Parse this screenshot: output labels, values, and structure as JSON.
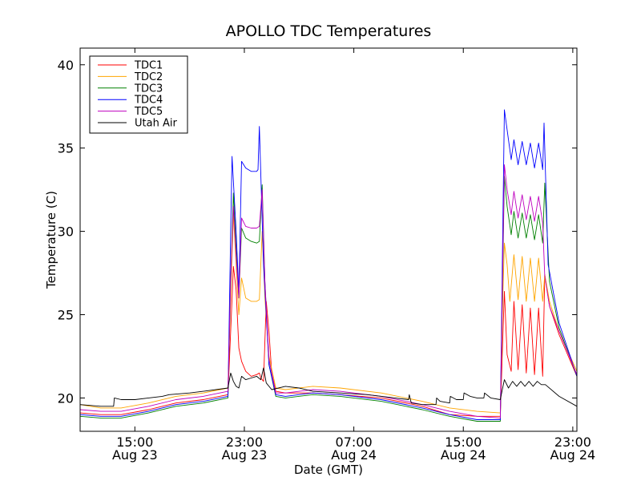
{
  "chart_data": {
    "type": "line",
    "title": "APOLLO TDC Temperatures",
    "xlabel": "Date (GMT)",
    "ylabel": "Temperature (C)",
    "xlim_hours": [
      11,
      47.3
    ],
    "ylim": [
      18,
      41
    ],
    "yticks": [
      20,
      25,
      30,
      35,
      40
    ],
    "xticks": [
      {
        "hour": 15,
        "line1": "15:00",
        "line2": "Aug 23"
      },
      {
        "hour": 23,
        "line1": "23:00",
        "line2": "Aug 23"
      },
      {
        "hour": 31,
        "line1": "07:00",
        "line2": "Aug 24"
      },
      {
        "hour": 39,
        "line1": "15:00",
        "line2": "Aug 24"
      },
      {
        "hour": 47,
        "line1": "23:00",
        "line2": "Aug 24"
      }
    ],
    "legend_position": "top-left",
    "series": [
      {
        "name": "TDC1",
        "color": "#ff0000",
        "points": [
          [
            11,
            19.1
          ],
          [
            12.5,
            19.0
          ],
          [
            14,
            19.0
          ],
          [
            16,
            19.3
          ],
          [
            18,
            19.7
          ],
          [
            20,
            19.9
          ],
          [
            21.8,
            20.2
          ],
          [
            22.0,
            24
          ],
          [
            22.2,
            27.9
          ],
          [
            22.4,
            26.5
          ],
          [
            22.6,
            23.0
          ],
          [
            22.8,
            22.2
          ],
          [
            23.1,
            21.6
          ],
          [
            23.5,
            21.3
          ],
          [
            23.9,
            21.4
          ],
          [
            24.1,
            21.5
          ],
          [
            24.2,
            21.2
          ],
          [
            24.4,
            21.0
          ],
          [
            24.6,
            25.8
          ],
          [
            24.8,
            24.0
          ],
          [
            25.0,
            21.5
          ],
          [
            25.3,
            20.4
          ],
          [
            26,
            20.3
          ],
          [
            28,
            20.3
          ],
          [
            30,
            20.2
          ],
          [
            33,
            20.0
          ],
          [
            36,
            19.5
          ],
          [
            38,
            19.0
          ],
          [
            40,
            18.9
          ],
          [
            41.7,
            18.9
          ],
          [
            41.85,
            22.7
          ],
          [
            42.0,
            26.4
          ],
          [
            42.2,
            22.6
          ],
          [
            42.5,
            21.6
          ],
          [
            42.7,
            25.8
          ],
          [
            43.0,
            21.7
          ],
          [
            43.3,
            25.6
          ],
          [
            43.6,
            21.5
          ],
          [
            43.9,
            25.4
          ],
          [
            44.2,
            21.4
          ],
          [
            44.5,
            25.4
          ],
          [
            44.8,
            21.3
          ],
          [
            44.95,
            27.4
          ],
          [
            45.3,
            25.5
          ],
          [
            46,
            23.8
          ],
          [
            47.3,
            21.3
          ]
        ]
      },
      {
        "name": "TDC2",
        "color": "#ffa500",
        "points": [
          [
            11,
            19.6
          ],
          [
            12.5,
            19.4
          ],
          [
            14,
            19.4
          ],
          [
            16,
            19.7
          ],
          [
            18,
            20.1
          ],
          [
            20,
            20.3
          ],
          [
            21.8,
            20.6
          ],
          [
            22.0,
            26
          ],
          [
            22.2,
            31.0
          ],
          [
            22.4,
            28.0
          ],
          [
            22.6,
            25.0
          ],
          [
            22.8,
            27.2
          ],
          [
            23.1,
            26.0
          ],
          [
            23.5,
            25.8
          ],
          [
            23.9,
            25.8
          ],
          [
            24.1,
            25.9
          ],
          [
            24.3,
            30.0
          ],
          [
            24.5,
            26.0
          ],
          [
            24.8,
            22.5
          ],
          [
            25.3,
            20.6
          ],
          [
            26,
            20.5
          ],
          [
            28,
            20.7
          ],
          [
            30,
            20.6
          ],
          [
            33,
            20.3
          ],
          [
            36,
            19.8
          ],
          [
            38,
            19.4
          ],
          [
            40,
            19.2
          ],
          [
            41.7,
            19.1
          ],
          [
            41.85,
            25.0
          ],
          [
            42.0,
            29.3
          ],
          [
            42.2,
            28.0
          ],
          [
            42.4,
            25.8
          ],
          [
            42.7,
            28.6
          ],
          [
            43.0,
            25.9
          ],
          [
            43.3,
            28.5
          ],
          [
            43.6,
            25.8
          ],
          [
            43.9,
            28.4
          ],
          [
            44.2,
            25.8
          ],
          [
            44.5,
            28.4
          ],
          [
            44.8,
            25.8
          ],
          [
            44.95,
            27.4
          ],
          [
            45.3,
            25.8
          ],
          [
            46,
            24.0
          ],
          [
            47.3,
            21.6
          ]
        ]
      },
      {
        "name": "TDC3",
        "color": "#008000",
        "points": [
          [
            11,
            18.9
          ],
          [
            12.5,
            18.8
          ],
          [
            14,
            18.8
          ],
          [
            16,
            19.1
          ],
          [
            18,
            19.5
          ],
          [
            20,
            19.7
          ],
          [
            21.8,
            20.0
          ],
          [
            22.0,
            27
          ],
          [
            22.2,
            32.3
          ],
          [
            22.4,
            29.0
          ],
          [
            22.6,
            26.0
          ],
          [
            22.8,
            30.2
          ],
          [
            23.1,
            29.6
          ],
          [
            23.5,
            29.4
          ],
          [
            23.9,
            29.3
          ],
          [
            24.1,
            29.4
          ],
          [
            24.3,
            32.8
          ],
          [
            24.5,
            27.0
          ],
          [
            24.8,
            22.0
          ],
          [
            25.3,
            20.1
          ],
          [
            26,
            20.0
          ],
          [
            28,
            20.2
          ],
          [
            30,
            20.1
          ],
          [
            33,
            19.8
          ],
          [
            36,
            19.3
          ],
          [
            38,
            18.9
          ],
          [
            40,
            18.6
          ],
          [
            41.7,
            18.6
          ],
          [
            41.85,
            26.0
          ],
          [
            42.0,
            33.3
          ],
          [
            42.2,
            31.5
          ],
          [
            42.5,
            29.8
          ],
          [
            42.7,
            31.2
          ],
          [
            43.0,
            29.6
          ],
          [
            43.3,
            31.1
          ],
          [
            43.6,
            29.6
          ],
          [
            43.9,
            31.0
          ],
          [
            44.2,
            29.5
          ],
          [
            44.5,
            31.0
          ],
          [
            44.8,
            29.3
          ],
          [
            44.95,
            32.9
          ],
          [
            45.3,
            27.0
          ],
          [
            46,
            24.2
          ],
          [
            47.3,
            21.3
          ]
        ]
      },
      {
        "name": "TDC4",
        "color": "#0000ff",
        "points": [
          [
            11,
            19.0
          ],
          [
            12.5,
            18.9
          ],
          [
            14,
            18.9
          ],
          [
            16,
            19.2
          ],
          [
            18,
            19.6
          ],
          [
            20,
            19.8
          ],
          [
            21.8,
            20.1
          ],
          [
            22.0,
            30
          ],
          [
            22.1,
            34.5
          ],
          [
            22.4,
            30.0
          ],
          [
            22.6,
            26.3
          ],
          [
            22.8,
            34.2
          ],
          [
            23.1,
            33.8
          ],
          [
            23.5,
            33.6
          ],
          [
            23.9,
            33.6
          ],
          [
            24.0,
            33.7
          ],
          [
            24.1,
            36.3
          ],
          [
            24.4,
            28.0
          ],
          [
            24.8,
            22.0
          ],
          [
            25.3,
            20.2
          ],
          [
            26,
            20.1
          ],
          [
            28,
            20.3
          ],
          [
            30,
            20.2
          ],
          [
            33,
            19.9
          ],
          [
            36,
            19.4
          ],
          [
            38,
            19.0
          ],
          [
            40,
            18.7
          ],
          [
            41.7,
            18.7
          ],
          [
            41.85,
            28.0
          ],
          [
            42.0,
            37.3
          ],
          [
            42.3,
            35.5
          ],
          [
            42.5,
            34.3
          ],
          [
            42.7,
            35.5
          ],
          [
            43.0,
            34.0
          ],
          [
            43.3,
            35.4
          ],
          [
            43.6,
            34.0
          ],
          [
            43.9,
            35.3
          ],
          [
            44.2,
            33.8
          ],
          [
            44.5,
            35.3
          ],
          [
            44.8,
            33.7
          ],
          [
            44.9,
            36.5
          ],
          [
            45.2,
            28.0
          ],
          [
            46,
            24.5
          ],
          [
            47.3,
            21.3
          ]
        ]
      },
      {
        "name": "TDC5",
        "color": "#bf00bf",
        "points": [
          [
            11,
            19.3
          ],
          [
            12.5,
            19.2
          ],
          [
            14,
            19.2
          ],
          [
            16,
            19.5
          ],
          [
            18,
            19.9
          ],
          [
            20,
            20.1
          ],
          [
            21.8,
            20.4
          ],
          [
            22.0,
            27
          ],
          [
            22.2,
            31.5
          ],
          [
            22.4,
            28.5
          ],
          [
            22.6,
            26.0
          ],
          [
            22.8,
            30.8
          ],
          [
            23.1,
            30.3
          ],
          [
            23.5,
            30.2
          ],
          [
            23.9,
            30.2
          ],
          [
            24.1,
            30.3
          ],
          [
            24.3,
            32.5
          ],
          [
            24.5,
            27.0
          ],
          [
            24.8,
            22.3
          ],
          [
            25.3,
            20.3
          ],
          [
            26,
            20.3
          ],
          [
            28,
            20.5
          ],
          [
            30,
            20.4
          ],
          [
            33,
            20.1
          ],
          [
            36,
            19.6
          ],
          [
            38,
            19.2
          ],
          [
            40,
            18.9
          ],
          [
            41.7,
            18.8
          ],
          [
            41.85,
            26.5
          ],
          [
            42.0,
            34.0
          ],
          [
            42.2,
            32.5
          ],
          [
            42.5,
            31.0
          ],
          [
            42.7,
            32.4
          ],
          [
            43.0,
            30.8
          ],
          [
            43.3,
            32.2
          ],
          [
            43.6,
            30.7
          ],
          [
            43.9,
            32.1
          ],
          [
            44.2,
            30.6
          ],
          [
            44.5,
            32.1
          ],
          [
            44.8,
            30.5
          ],
          [
            44.95,
            27.3
          ],
          [
            45.3,
            25.5
          ],
          [
            46,
            24.0
          ],
          [
            47.3,
            21.4
          ]
        ]
      },
      {
        "name": "Utah Air",
        "color": "#000000",
        "points": [
          [
            11,
            19.6
          ],
          [
            12.5,
            19.5
          ],
          [
            13.45,
            19.5
          ],
          [
            13.5,
            20.0
          ],
          [
            14,
            19.9
          ],
          [
            15,
            19.9
          ],
          [
            16,
            20.0
          ],
          [
            17,
            20.1
          ],
          [
            17.5,
            20.2
          ],
          [
            19,
            20.3
          ],
          [
            20,
            20.4
          ],
          [
            21.8,
            20.6
          ],
          [
            22.0,
            21.5
          ],
          [
            22.2,
            21.0
          ],
          [
            22.4,
            20.7
          ],
          [
            22.6,
            20.6
          ],
          [
            22.8,
            21.3
          ],
          [
            23.1,
            21.1
          ],
          [
            23.5,
            21.2
          ],
          [
            23.9,
            21.3
          ],
          [
            24.2,
            21.1
          ],
          [
            24.4,
            21.8
          ],
          [
            24.6,
            20.9
          ],
          [
            25,
            20.5
          ],
          [
            26,
            20.7
          ],
          [
            27,
            20.6
          ],
          [
            28,
            20.4
          ],
          [
            30,
            20.3
          ],
          [
            32,
            20.2
          ],
          [
            34,
            20.0
          ],
          [
            35,
            19.9
          ],
          [
            35.05,
            20.2
          ],
          [
            35.2,
            19.7
          ],
          [
            36,
            19.6
          ],
          [
            37,
            19.6
          ],
          [
            37.05,
            20.0
          ],
          [
            37.3,
            19.8
          ],
          [
            38,
            19.7
          ],
          [
            38.05,
            20.1
          ],
          [
            38.5,
            19.9
          ],
          [
            39,
            19.9
          ],
          [
            39.05,
            20.3
          ],
          [
            39.5,
            20.1
          ],
          [
            40,
            20.0
          ],
          [
            40.5,
            20.0
          ],
          [
            40.55,
            20.3
          ],
          [
            41,
            20.0
          ],
          [
            41.7,
            19.9
          ],
          [
            41.85,
            20.5
          ],
          [
            42.0,
            21.1
          ],
          [
            42.3,
            20.6
          ],
          [
            42.6,
            21.0
          ],
          [
            42.9,
            20.7
          ],
          [
            43.2,
            21.0
          ],
          [
            43.5,
            20.7
          ],
          [
            43.8,
            21.0
          ],
          [
            44.1,
            20.7
          ],
          [
            44.4,
            21.0
          ],
          [
            44.7,
            20.8
          ],
          [
            45,
            20.8
          ],
          [
            46,
            20.1
          ],
          [
            47.3,
            19.5
          ]
        ]
      }
    ]
  }
}
